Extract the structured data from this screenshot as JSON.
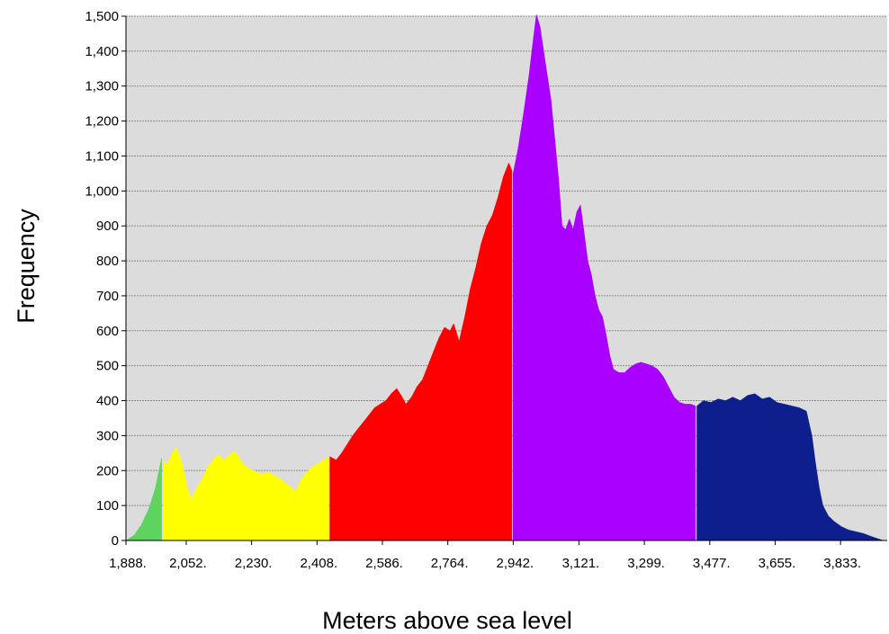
{
  "chart_data": {
    "type": "bar",
    "title": "",
    "xlabel": "Meters above sea level",
    "ylabel": "Frequency",
    "xlim": [
      1888,
      3960
    ],
    "ylim": [
      0,
      1500
    ],
    "grid": true,
    "x_ticks": [
      "1,888.",
      "2,052.",
      "2,230.",
      "2,408.",
      "2,586.",
      "2,764.",
      "2,942.",
      "3,121.",
      "3,299.",
      "3,477.",
      "3,655.",
      "3,833."
    ],
    "y_ticks": [
      "0",
      "100",
      "200",
      "300",
      "400",
      "500",
      "600",
      "700",
      "800",
      "900",
      "1,000",
      "1,100",
      "1,200",
      "1,300",
      "1,400",
      "1,500"
    ],
    "series": [
      {
        "color": "#5fd35f",
        "points": [
          [
            1888,
            0
          ],
          [
            1910,
            15
          ],
          [
            1930,
            45
          ],
          [
            1950,
            90
          ],
          [
            1968,
            150
          ],
          [
            1985,
            235
          ]
        ]
      },
      {
        "color": "#ffff00",
        "points": [
          [
            1990,
            230
          ],
          [
            2000,
            215
          ],
          [
            2015,
            255
          ],
          [
            2025,
            265
          ],
          [
            2035,
            240
          ],
          [
            2045,
            200
          ],
          [
            2055,
            150
          ],
          [
            2065,
            120
          ],
          [
            2080,
            150
          ],
          [
            2095,
            175
          ],
          [
            2110,
            210
          ],
          [
            2125,
            230
          ],
          [
            2140,
            245
          ],
          [
            2155,
            230
          ],
          [
            2170,
            245
          ],
          [
            2185,
            255
          ],
          [
            2200,
            230
          ],
          [
            2215,
            210
          ],
          [
            2235,
            200
          ],
          [
            2255,
            190
          ],
          [
            2275,
            195
          ],
          [
            2295,
            185
          ],
          [
            2315,
            170
          ],
          [
            2335,
            155
          ],
          [
            2350,
            140
          ],
          [
            2365,
            175
          ],
          [
            2380,
            195
          ],
          [
            2395,
            210
          ],
          [
            2410,
            220
          ],
          [
            2425,
            230
          ],
          [
            2440,
            240
          ]
        ]
      },
      {
        "color": "#ff0000",
        "points": [
          [
            2443,
            240
          ],
          [
            2460,
            230
          ],
          [
            2475,
            250
          ],
          [
            2490,
            275
          ],
          [
            2505,
            300
          ],
          [
            2520,
            320
          ],
          [
            2535,
            340
          ],
          [
            2550,
            360
          ],
          [
            2565,
            380
          ],
          [
            2580,
            390
          ],
          [
            2595,
            400
          ],
          [
            2610,
            420
          ],
          [
            2625,
            435
          ],
          [
            2640,
            410
          ],
          [
            2650,
            390
          ],
          [
            2665,
            410
          ],
          [
            2680,
            440
          ],
          [
            2695,
            460
          ],
          [
            2710,
            500
          ],
          [
            2725,
            540
          ],
          [
            2740,
            580
          ],
          [
            2755,
            610
          ],
          [
            2770,
            600
          ],
          [
            2780,
            620
          ],
          [
            2795,
            570
          ],
          [
            2810,
            640
          ],
          [
            2825,
            720
          ],
          [
            2840,
            780
          ],
          [
            2855,
            850
          ],
          [
            2870,
            900
          ],
          [
            2885,
            930
          ],
          [
            2900,
            980
          ],
          [
            2915,
            1040
          ],
          [
            2930,
            1080
          ],
          [
            2938,
            1060
          ]
        ]
      },
      {
        "color": "#aa00ff",
        "points": [
          [
            2942,
            1050
          ],
          [
            2955,
            1120
          ],
          [
            2970,
            1220
          ],
          [
            2985,
            1330
          ],
          [
            2995,
            1420
          ],
          [
            3005,
            1505
          ],
          [
            3015,
            1470
          ],
          [
            3025,
            1400
          ],
          [
            3035,
            1330
          ],
          [
            3045,
            1260
          ],
          [
            3055,
            1150
          ],
          [
            3065,
            1040
          ],
          [
            3075,
            900
          ],
          [
            3085,
            890
          ],
          [
            3095,
            920
          ],
          [
            3105,
            890
          ],
          [
            3115,
            940
          ],
          [
            3125,
            960
          ],
          [
            3135,
            880
          ],
          [
            3145,
            800
          ],
          [
            3155,
            760
          ],
          [
            3165,
            700
          ],
          [
            3175,
            660
          ],
          [
            3185,
            640
          ],
          [
            3195,
            590
          ],
          [
            3205,
            530
          ],
          [
            3215,
            490
          ],
          [
            3230,
            480
          ],
          [
            3245,
            480
          ],
          [
            3260,
            495
          ],
          [
            3275,
            505
          ],
          [
            3290,
            510
          ],
          [
            3305,
            505
          ],
          [
            3320,
            500
          ],
          [
            3335,
            490
          ],
          [
            3350,
            470
          ],
          [
            3365,
            440
          ],
          [
            3380,
            410
          ],
          [
            3395,
            395
          ],
          [
            3410,
            390
          ],
          [
            3425,
            390
          ],
          [
            3438,
            385
          ]
        ]
      },
      {
        "color": "#0d1f8c",
        "points": [
          [
            3442,
            385
          ],
          [
            3460,
            400
          ],
          [
            3480,
            395
          ],
          [
            3500,
            405
          ],
          [
            3520,
            400
          ],
          [
            3540,
            410
          ],
          [
            3560,
            400
          ],
          [
            3580,
            415
          ],
          [
            3600,
            420
          ],
          [
            3620,
            405
          ],
          [
            3640,
            410
          ],
          [
            3660,
            395
          ],
          [
            3680,
            390
          ],
          [
            3700,
            385
          ],
          [
            3720,
            380
          ],
          [
            3740,
            370
          ],
          [
            3755,
            300
          ],
          [
            3765,
            220
          ],
          [
            3775,
            150
          ],
          [
            3785,
            100
          ],
          [
            3800,
            70
          ],
          [
            3815,
            55
          ],
          [
            3835,
            40
          ],
          [
            3855,
            30
          ],
          [
            3875,
            25
          ],
          [
            3895,
            20
          ],
          [
            3915,
            12
          ],
          [
            3935,
            5
          ],
          [
            3950,
            0
          ]
        ]
      }
    ]
  }
}
